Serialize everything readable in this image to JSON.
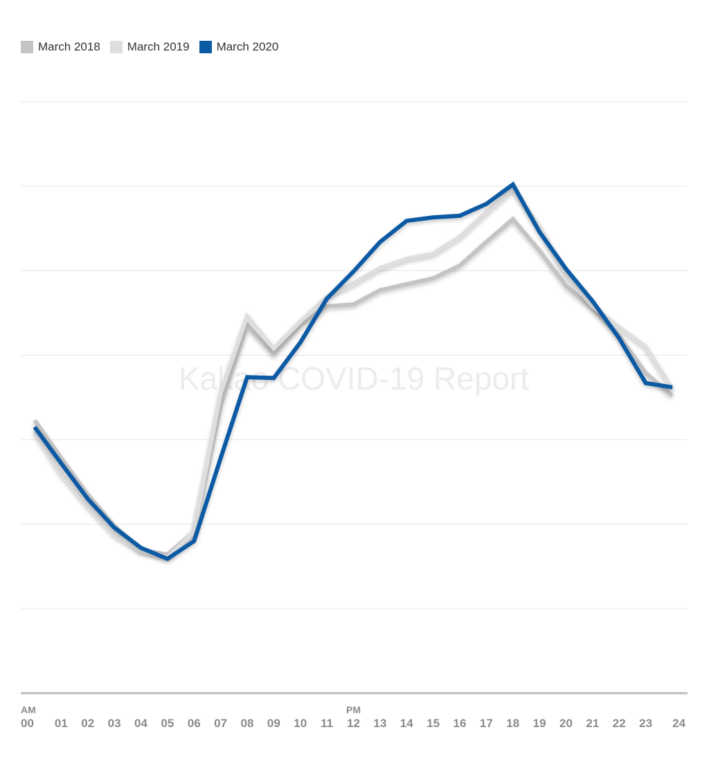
{
  "watermark": "Kakao COVID-19 Report",
  "colors": {
    "grid": "#e6e6e6",
    "baseline": "#bdbdbd",
    "tick": "#8a8a8a"
  },
  "chart_data": {
    "type": "line",
    "title": "",
    "xlabel": "",
    "ylabel": "",
    "x": [
      "00",
      "01",
      "02",
      "03",
      "04",
      "05",
      "06",
      "07",
      "08",
      "09",
      "10",
      "11",
      "12",
      "13",
      "14",
      "15",
      "16",
      "17",
      "18",
      "19",
      "20",
      "21",
      "22",
      "23",
      "24"
    ],
    "period_labels": [
      {
        "text": "AM",
        "index": 0
      },
      {
        "text": "PM",
        "index": 12
      }
    ],
    "ylim": [
      0,
      7
    ],
    "y_gridlines": 7,
    "grid": true,
    "y_tick_labels": false,
    "legend_position": "top-left",
    "series": [
      {
        "name": "March 2018",
        "color": "#c4c4c4",
        "values": [
          3.23,
          2.78,
          2.35,
          1.98,
          1.7,
          1.64,
          1.91,
          3.4,
          4.35,
          4.01,
          4.35,
          4.58,
          4.6,
          4.77,
          4.84,
          4.91,
          5.06,
          5.34,
          5.61,
          5.24,
          4.82,
          4.55,
          4.23,
          3.79,
          3.52
        ]
      },
      {
        "name": "March 2019",
        "color": "#dedede",
        "values": [
          3.1,
          2.6,
          2.22,
          1.88,
          1.68,
          1.61,
          1.91,
          3.55,
          4.46,
          4.08,
          4.4,
          4.69,
          4.85,
          5.03,
          5.14,
          5.2,
          5.4,
          5.69,
          5.97,
          5.52,
          4.95,
          4.58,
          4.33,
          4.1,
          3.6
        ]
      },
      {
        "name": "March 2020",
        "color": "#0a5aa4",
        "values": [
          3.15,
          2.72,
          2.3,
          1.96,
          1.72,
          1.59,
          1.8,
          2.78,
          3.74,
          3.73,
          4.15,
          4.67,
          4.99,
          5.34,
          5.59,
          5.63,
          5.65,
          5.79,
          6.02,
          5.46,
          5.02,
          4.64,
          4.2,
          3.67,
          3.62
        ]
      }
    ]
  }
}
